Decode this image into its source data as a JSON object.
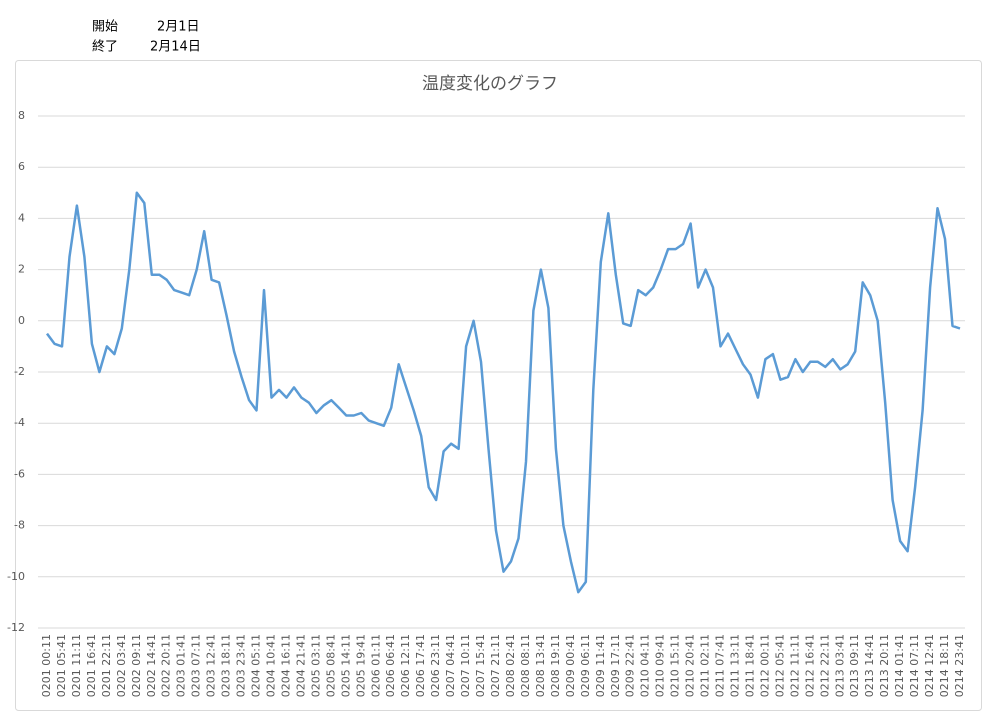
{
  "header": {
    "rows": [
      [
        "開始",
        "2月1日"
      ],
      [
        "終了",
        "2月14日"
      ]
    ]
  },
  "chart_data": {
    "type": "line",
    "title": "温度変化のグラフ",
    "categories": [
      "0201 00:11",
      null,
      "0201 05:41",
      null,
      "0201 11:11",
      null,
      "0201 16:41",
      null,
      "0201 22:11",
      null,
      "0202 03:41",
      null,
      "0202 09:11",
      null,
      "0202 14:41",
      null,
      "0202 20:11",
      null,
      "0203 01:41",
      null,
      "0203 07:11",
      null,
      "0203 12:41",
      null,
      "0203 18:11",
      null,
      "0203 23:41",
      null,
      "0204 05:11",
      null,
      "0204 10:41",
      null,
      "0204 16:11",
      null,
      "0204 21:41",
      null,
      "0205 03:11",
      null,
      "0205 08:41",
      null,
      "0205 14:11",
      null,
      "0205 19:41",
      null,
      "0206 01:11",
      null,
      "0206 06:41",
      null,
      "0206 12:11",
      null,
      "0206 17:41",
      null,
      "0206 23:11",
      null,
      "0207 04:41",
      null,
      "0207 10:11",
      null,
      "0207 15:41",
      null,
      "0207 21:11",
      null,
      "0208 02:41",
      null,
      "0208 08:11",
      null,
      "0208 13:41",
      null,
      "0208 19:11",
      null,
      "0209 00:41",
      null,
      "0209 06:11",
      null,
      "0209 11:41",
      null,
      "0209 17:11",
      null,
      "0209 22:41",
      null,
      "0210 04:11",
      null,
      "0210 09:41",
      null,
      "0210 15:11",
      null,
      "0210 20:41",
      null,
      "0211 02:11",
      null,
      "0211 07:41",
      null,
      "0211 13:11",
      null,
      "0211 18:41",
      null,
      "0212 00:11",
      null,
      "0212 05:41",
      null,
      "0212 11:11",
      null,
      "0212 16:41",
      null,
      "0212 22:11",
      null,
      "0213 03:41",
      null,
      "0213 09:11",
      null,
      "0213 14:41",
      null,
      "0213 20:11",
      null,
      "0214 01:41",
      null,
      "0214 07:11",
      null,
      "0214 12:41",
      null,
      "0214 18:11",
      null,
      "0214 23:41"
    ],
    "values": [
      -0.5,
      -0.9,
      -1.0,
      2.5,
      4.5,
      2.5,
      -0.9,
      -2.0,
      -1.0,
      -1.3,
      -0.3,
      2.0,
      5.0,
      4.6,
      1.8,
      1.8,
      1.6,
      1.2,
      1.1,
      1.0,
      2.0,
      3.5,
      1.6,
      1.5,
      0.2,
      -1.2,
      -2.2,
      -3.1,
      -3.5,
      1.2,
      -3.0,
      -2.7,
      -3.0,
      -2.6,
      -3.0,
      -3.2,
      -3.6,
      -3.3,
      -3.1,
      -3.4,
      -3.7,
      -3.7,
      -3.6,
      -3.9,
      -4.0,
      -4.1,
      -3.4,
      -1.7,
      -2.6,
      -3.5,
      -4.5,
      -6.5,
      -7.0,
      -5.1,
      -4.8,
      -5.0,
      -1.0,
      0.0,
      -1.6,
      -5.0,
      -8.2,
      -9.8,
      -9.4,
      -8.5,
      -5.5,
      0.4,
      2.0,
      0.5,
      -5.0,
      -8.0,
      -9.4,
      -10.6,
      -10.2,
      -2.7,
      2.3,
      4.2,
      1.8,
      -0.1,
      -0.2,
      1.2,
      1.0,
      1.3,
      2.0,
      2.8,
      2.8,
      3.0,
      3.8,
      1.3,
      2.0,
      1.3,
      -1.0,
      -0.5,
      -1.1,
      -1.7,
      -2.1,
      -3.0,
      -1.5,
      -1.3,
      -2.3,
      -2.2,
      -1.5,
      -2.0,
      -1.6,
      -1.6,
      -1.8,
      -1.5,
      -1.9,
      -1.7,
      -1.2,
      1.5,
      1.0,
      0.0,
      -3.2,
      -7.0,
      -8.6,
      -9.0,
      -6.5,
      -3.5,
      1.3,
      4.4,
      3.2,
      -0.2,
      -0.3
    ],
    "color": "#5b9bd5",
    "ylim": [
      -12,
      8
    ],
    "yticks": [
      -12,
      -10,
      -8,
      -6,
      -4,
      -2,
      0,
      2,
      4,
      6,
      8
    ],
    "grid": true
  }
}
